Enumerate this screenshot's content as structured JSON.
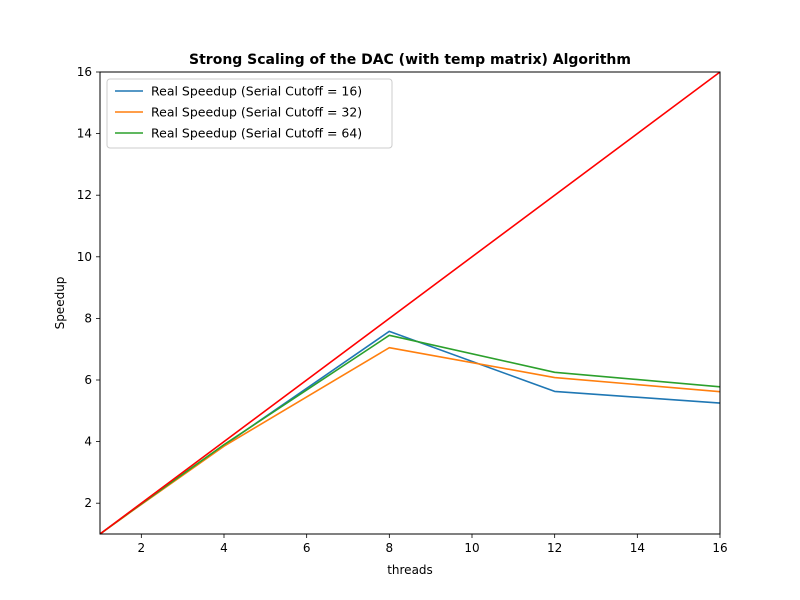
{
  "chart_data": {
    "type": "line",
    "title": "Strong Scaling of the DAC (with temp matrix) Algorithm",
    "xlabel": "threads",
    "ylabel": "Speedup",
    "xlim": [
      1,
      16
    ],
    "ylim": [
      1,
      16
    ],
    "x_ticks": [
      2,
      4,
      6,
      8,
      10,
      12,
      14,
      16
    ],
    "y_ticks": [
      2,
      4,
      6,
      8,
      10,
      12,
      14,
      16
    ],
    "grid": false,
    "legend_position": "upper-left",
    "series": [
      {
        "name": "Real Speedup (Serial Cutoff = 16)",
        "color": "#1f77b4",
        "x": [
          1,
          2,
          4,
          8,
          12,
          16
        ],
        "y": [
          1,
          1.98,
          3.88,
          7.58,
          5.63,
          5.25
        ]
      },
      {
        "name": "Real Speedup (Serial Cutoff = 32)",
        "color": "#ff7f0e",
        "x": [
          1,
          2,
          4,
          8,
          12,
          16
        ],
        "y": [
          1,
          1.96,
          3.85,
          7.05,
          6.08,
          5.62
        ]
      },
      {
        "name": "Real Speedup (Serial Cutoff = 64)",
        "color": "#2ca02c",
        "x": [
          1,
          2,
          4,
          8,
          12,
          16
        ],
        "y": [
          1,
          1.98,
          3.9,
          7.45,
          6.25,
          5.78
        ]
      },
      {
        "color": "#ff0000",
        "x": [
          1,
          16
        ],
        "y": [
          1,
          16
        ]
      }
    ]
  }
}
